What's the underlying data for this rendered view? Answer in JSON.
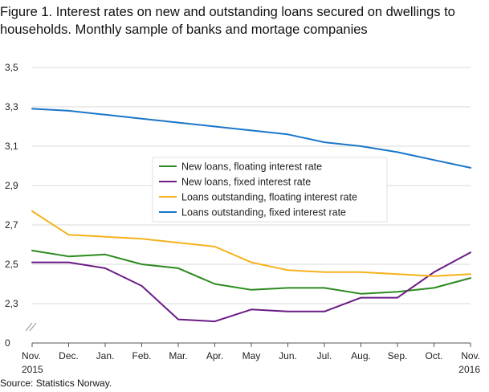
{
  "title": "Figure 1. Interest rates on new and outstanding loans secured on dwellings to households. Monthly sample of banks and mortage companies",
  "source": "Source: Statistics Norway.",
  "chart_data": {
    "type": "line",
    "title": "Figure 1. Interest rates on new and outstanding loans secured on dwellings to households. Monthly sample of banks and mortage companies",
    "xlabel": "",
    "ylabel": "",
    "categories": [
      "Nov.",
      "Dec.",
      "Jan.",
      "Feb.",
      "Mar.",
      "Apr.",
      "May",
      "Jun.",
      "Jul.",
      "Aug.",
      "Sep.",
      "Oct.",
      "Nov."
    ],
    "x_sublabels": {
      "0": "2015",
      "12": "2016"
    },
    "y_ticks": [
      "0",
      "2,3",
      "2,5",
      "2,7",
      "2,9",
      "3,1",
      "3,3",
      "3,5"
    ],
    "ylim": [
      2.1,
      3.5
    ],
    "axis_break": true,
    "grid": true,
    "legend_position": "center",
    "series": [
      {
        "name": "New loans, floating interest rate",
        "color": "#2b8a1e",
        "values": [
          2.57,
          2.54,
          2.55,
          2.5,
          2.48,
          2.4,
          2.37,
          2.38,
          2.38,
          2.35,
          2.36,
          2.38,
          2.43
        ]
      },
      {
        "name": "New loans, fixed interest rate",
        "color": "#6a1b86",
        "values": [
          2.51,
          2.51,
          2.48,
          2.39,
          2.22,
          2.21,
          2.27,
          2.26,
          2.26,
          2.33,
          2.33,
          2.46,
          2.56
        ]
      },
      {
        "name": "Loans outstanding, floating interest rate",
        "color": "#f5b21b",
        "values": [
          2.77,
          2.65,
          2.64,
          2.63,
          2.61,
          2.59,
          2.51,
          2.47,
          2.46,
          2.46,
          2.45,
          2.44,
          2.45
        ]
      },
      {
        "name": "Loans outstanding, fixed interest rate",
        "color": "#1a76c9",
        "values": [
          3.29,
          3.28,
          3.26,
          3.24,
          3.22,
          3.2,
          3.18,
          3.16,
          3.12,
          3.1,
          3.07,
          3.03,
          2.99
        ]
      }
    ]
  }
}
